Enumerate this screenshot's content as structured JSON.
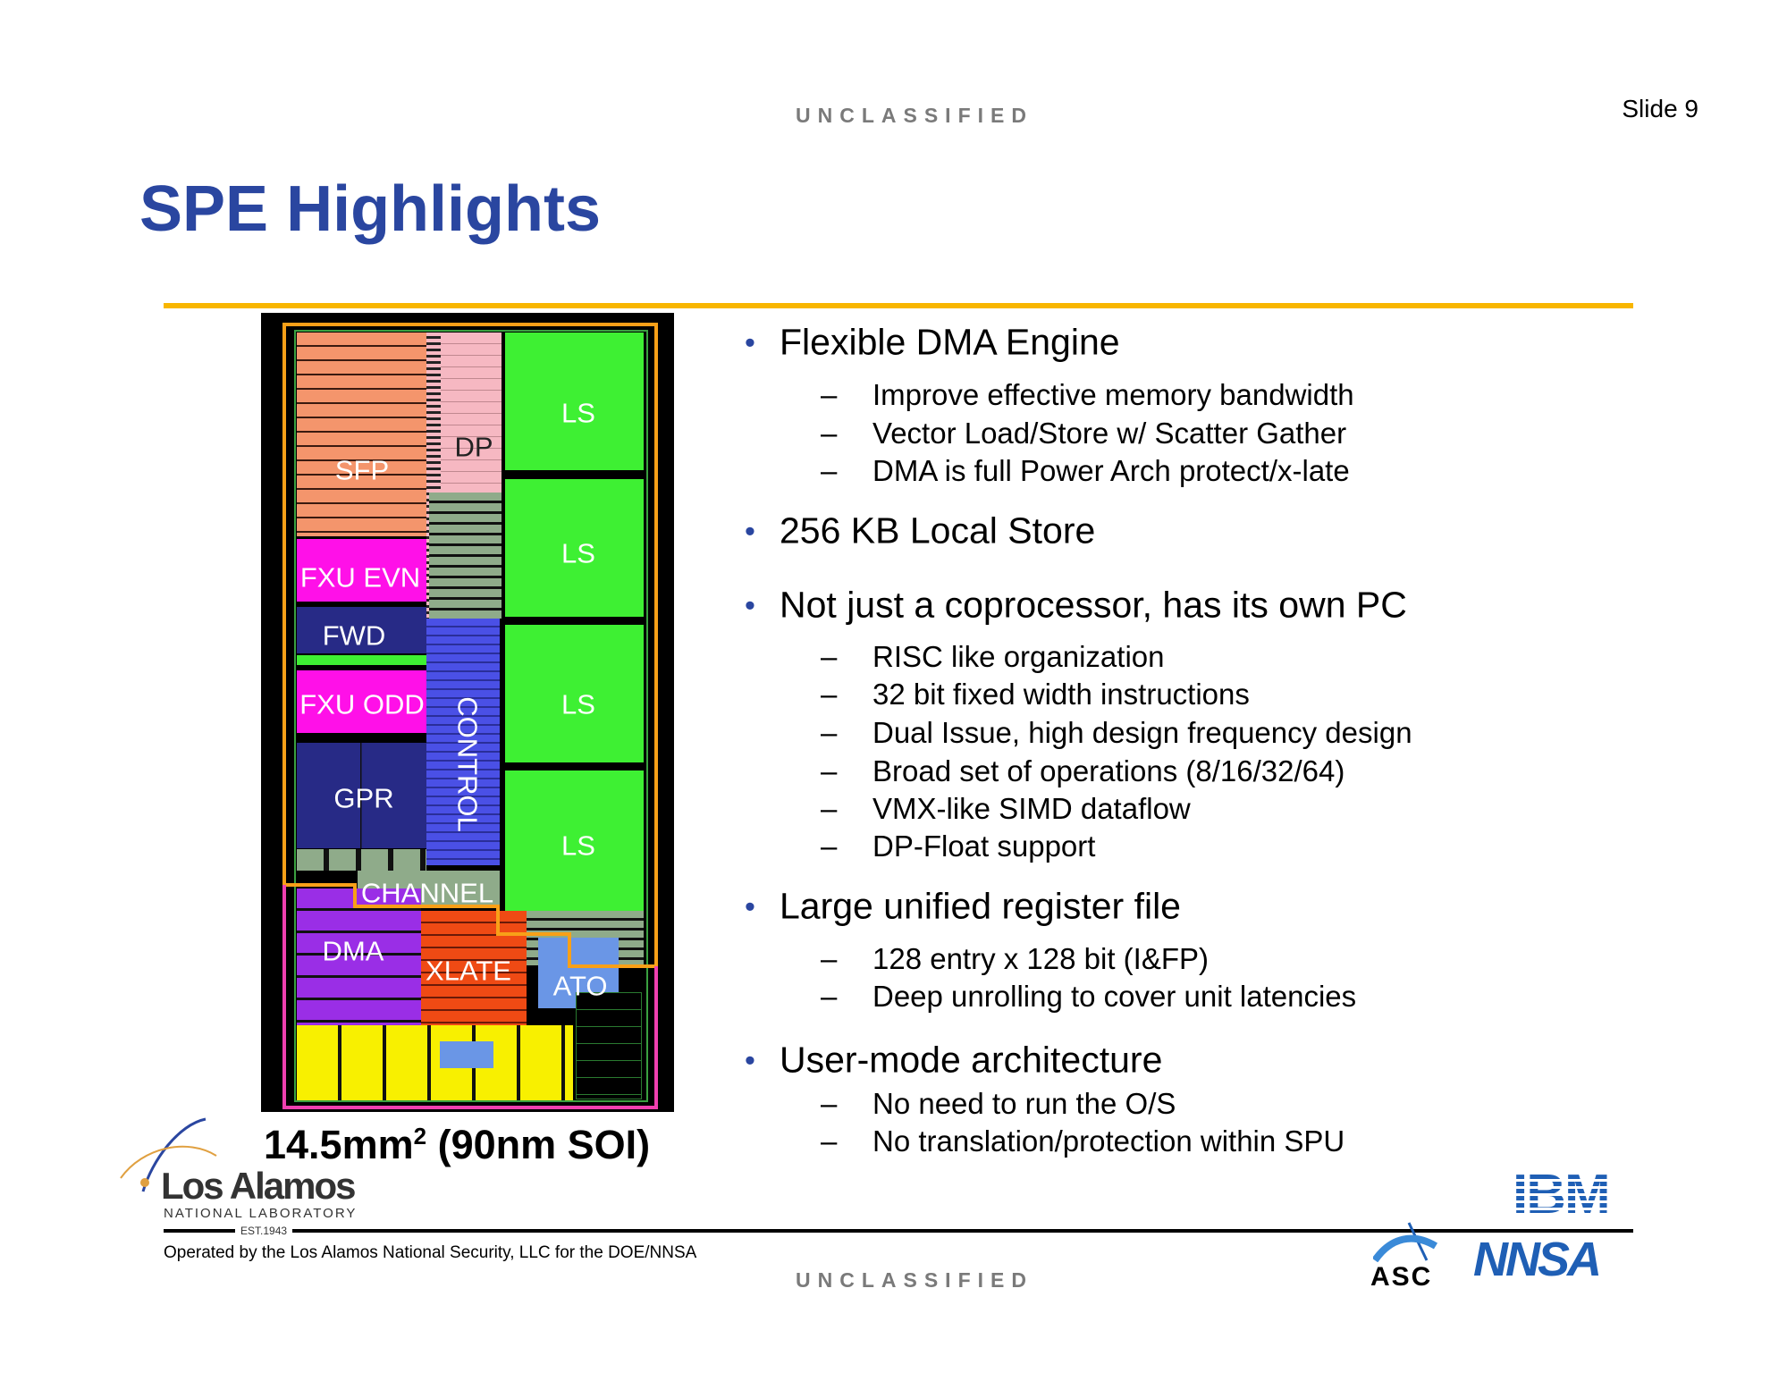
{
  "header": {
    "classification": "UNCLASSIFIED",
    "slide_number": "Slide 9"
  },
  "title": "SPE Highlights",
  "die": {
    "labels": {
      "ls1": "LS",
      "ls2": "LS",
      "ls3": "LS",
      "ls4": "LS",
      "dp": "DP",
      "sfp": "SFP",
      "fxu_evn": "FXU EVN",
      "fwd": "FWD",
      "fxu_odd": "FXU ODD",
      "gpr": "GPR",
      "control": "CONTROL",
      "channel": "CHANNEL",
      "dma": "DMA",
      "xlate": "XLATE",
      "ato": "ATO"
    },
    "caption_main": "14.5mm",
    "caption_sup": "2",
    "caption_rest": " (90nm SOI)"
  },
  "bullets": [
    {
      "text": "Flexible DMA Engine",
      "sub": [
        "Improve effective memory bandwidth",
        "Vector Load/Store w/ Scatter Gather",
        "DMA is full Power Arch protect/x-late"
      ]
    },
    {
      "text": "256 KB Local Store",
      "sub": []
    },
    {
      "text": "Not just a coprocessor, has its own PC",
      "sub": [
        "RISC like organization",
        "32 bit fixed width instructions",
        "Dual Issue, high design frequency design",
        "Broad set of operations (8/16/32/64)",
        "VMX-like SIMD dataflow",
        "DP-Float support"
      ]
    },
    {
      "text": "Large unified register file",
      "sub": [
        "128 entry x 128 bit (I&FP)",
        "Deep unrolling to cover unit latencies"
      ]
    },
    {
      "text": "User-mode architecture",
      "sub": [
        "No need to run the O/S",
        "No translation/protection within SPU"
      ]
    }
  ],
  "footer": {
    "operated_by": "Operated by the Los Alamos National Security, LLC for the DOE/NNSA",
    "classification": "UNCLASSIFIED",
    "logos": {
      "los_alamos": "Los Alamos",
      "los_alamos_sub": "NATIONAL LABORATORY",
      "los_alamos_est": "EST.1943",
      "ibm": "IBM",
      "asc": "ASC",
      "nnsa": "NNSA"
    }
  },
  "colors": {
    "title": "#2a46a0",
    "rule": "#f8b600",
    "ls": "#3ef033",
    "sfp": "#f4956c",
    "dp": "#f6b8c2",
    "fxu": "#ff10e8",
    "fwd_gpr": "#272a86",
    "control": "#4a50e6",
    "dma": "#9a2ee6",
    "xlate": "#ef4a14",
    "ato": "#6a96e6",
    "yellow": "#f8f000",
    "gray": "#8fab8a"
  }
}
